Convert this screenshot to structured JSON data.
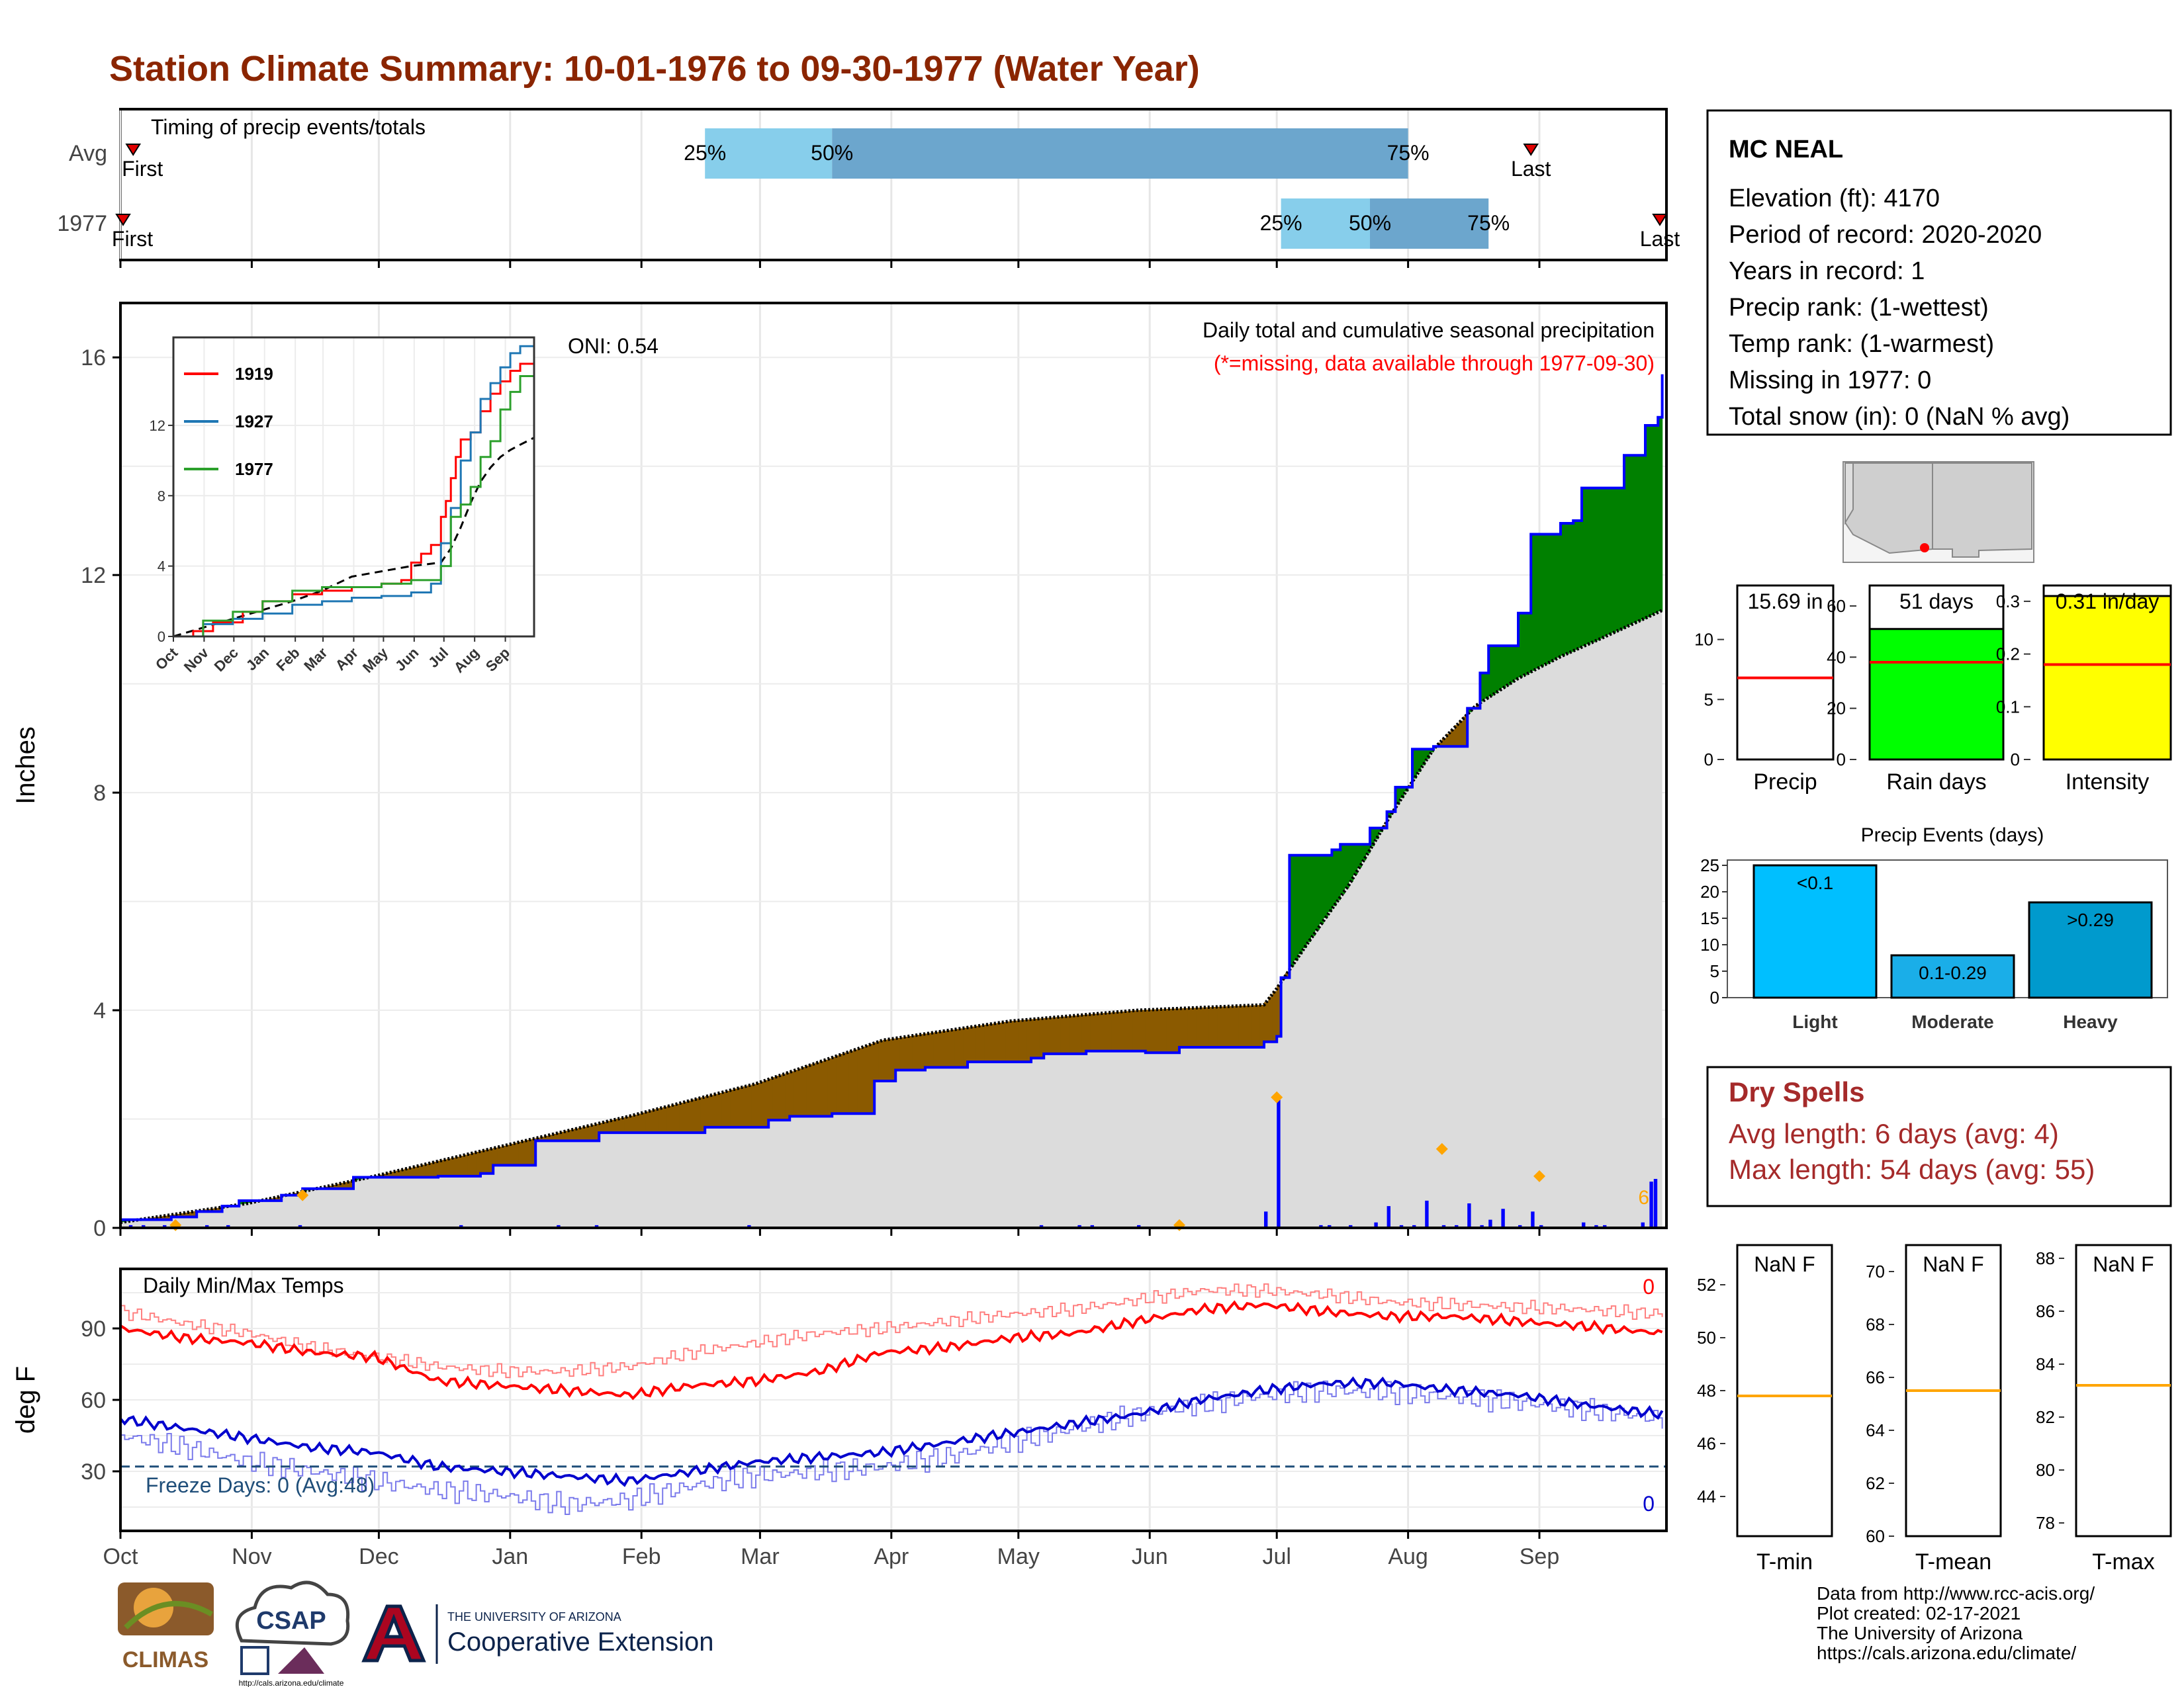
{
  "title": "Station Climate Summary: 10-01-1976 to 09-30-1977 (Water Year)",
  "colors": {
    "title": "#8B2500",
    "wet": "#008000",
    "dry": "#8B5A00",
    "avg_fill": "#DCDCDC",
    "cum_line": "#0000FF",
    "daily_bar": "#0000FF",
    "tmax": "#FF0000",
    "tmin": "#0000CD",
    "freeze": "#1F4E79",
    "timing_light": "#87CEEB",
    "timing_dark": "#6CA6CD",
    "rain_days": "#00FF00",
    "intensity": "#FFFF00",
    "events": "#00BFFF",
    "dry_spells": "#A52A2A",
    "marker": "#FFA500"
  },
  "months": [
    "Oct",
    "Nov",
    "Dec",
    "Jan",
    "Feb",
    "Mar",
    "Apr",
    "May",
    "Jun",
    "Jul",
    "Aug",
    "Sep"
  ],
  "timing": {
    "label": "Timing of precip events/totals",
    "rows": [
      {
        "name": "Avg",
        "first": "First",
        "last": "Last",
        "first_day": 3,
        "q25": 138,
        "q50": 168,
        "q75": 304,
        "last_day": 333
      },
      {
        "name": "1977",
        "first": "First",
        "last": "Last",
        "first_day": 0,
        "q25": 274,
        "q50": 295,
        "q75": 323,
        "last_day": 364
      }
    ],
    "q_labels": [
      "25%",
      "50%",
      "75%"
    ]
  },
  "precip": {
    "ylabel": "Inches",
    "ylim": [
      0,
      17
    ],
    "yticks": [
      0,
      4,
      8,
      12,
      16
    ],
    "title_text": "Daily total and cumulative seasonal precipitation",
    "missing_note": "(*=missing, data available through 1977-09-30)",
    "oni": "ONI: 0.54",
    "marker_note": "6",
    "cum_steps": [
      [
        0,
        0.15
      ],
      [
        12,
        0.2
      ],
      [
        18,
        0.3
      ],
      [
        24,
        0.4
      ],
      [
        28,
        0.5
      ],
      [
        38,
        0.6
      ],
      [
        43,
        0.72
      ],
      [
        55,
        0.93
      ],
      [
        75,
        0.95
      ],
      [
        85,
        1.0
      ],
      [
        88,
        1.15
      ],
      [
        98,
        1.6
      ],
      [
        113,
        1.75
      ],
      [
        138,
        1.85
      ],
      [
        153,
        1.98
      ],
      [
        158,
        2.05
      ],
      [
        168,
        2.1
      ],
      [
        178,
        2.7
      ],
      [
        183,
        2.9
      ],
      [
        190,
        2.95
      ],
      [
        200,
        3.05
      ],
      [
        215,
        3.12
      ],
      [
        218,
        3.2
      ],
      [
        228,
        3.25
      ],
      [
        242,
        3.22
      ],
      [
        288,
        3.32
      ],
      [
        320,
        3.32
      ],
      [
        340,
        3.52
      ],
      [
        365,
        3.6
      ],
      [
        382,
        3.65
      ],
      [
        400,
        3.7
      ],
      [
        410,
        3.75
      ],
      [
        425,
        3.78
      ],
      [
        437,
        3.78
      ],
      [
        434,
        3.84
      ],
      [
        435,
        3.84
      ],
      [
        436,
        3.84
      ]
    ],
    "cum_x": [
      0,
      12,
      18,
      24,
      28,
      38,
      43,
      55,
      75,
      85,
      88,
      98,
      113,
      138,
      153,
      158,
      168,
      178,
      183,
      190,
      200,
      215,
      218,
      228,
      242,
      250,
      270,
      273,
      274,
      276,
      280,
      286,
      288,
      295,
      299,
      301,
      305,
      310,
      312,
      318,
      321,
      323,
      330,
      333,
      340,
      343,
      345,
      355,
      360,
      363,
      364
    ],
    "cum_y": [
      0.15,
      0.2,
      0.3,
      0.4,
      0.5,
      0.6,
      0.72,
      0.93,
      0.95,
      1.0,
      1.15,
      1.6,
      1.75,
      1.85,
      1.98,
      2.05,
      2.1,
      2.7,
      2.9,
      2.95,
      3.05,
      3.12,
      3.2,
      3.25,
      3.22,
      3.32,
      3.42,
      3.52,
      4.6,
      6.85,
      6.85,
      6.95,
      7.05,
      7.35,
      7.65,
      8.1,
      8.8,
      8.85,
      8.85,
      9.55,
      10.2,
      10.7,
      11.3,
      12.75,
      12.95,
      13.0,
      13.6,
      14.2,
      14.75,
      14.9,
      15.69
    ],
    "avg_x": [
      0,
      30,
      60,
      90,
      120,
      150,
      180,
      210,
      240,
      270,
      273,
      280,
      290,
      300,
      310,
      320,
      330,
      340,
      350,
      364
    ],
    "avg_y": [
      0.1,
      0.45,
      0.95,
      1.5,
      2.05,
      2.65,
      3.45,
      3.8,
      4.0,
      4.1,
      4.4,
      5.2,
      6.3,
      7.6,
      8.8,
      9.6,
      10.1,
      10.5,
      10.85,
      11.35
    ],
    "daily_x": [
      2,
      5,
      10,
      20,
      25,
      42,
      80,
      103,
      112,
      148,
      217,
      226,
      229,
      240,
      270,
      273,
      283,
      285,
      290,
      296,
      299,
      302,
      305,
      308,
      312,
      315,
      318,
      321,
      323,
      326,
      330,
      333,
      335,
      345,
      348,
      350,
      359,
      361,
      362
    ],
    "daily_y": [
      0.05,
      0.05,
      0.05,
      0.05,
      0.05,
      0.05,
      0.05,
      0.05,
      0.05,
      0.05,
      0.05,
      0.05,
      0.05,
      0.05,
      0.3,
      2.4,
      0.05,
      0.05,
      0.05,
      0.1,
      0.4,
      0.05,
      0.05,
      0.5,
      0.05,
      0.05,
      0.45,
      0.05,
      0.15,
      0.35,
      0.05,
      0.3,
      0.05,
      0.1,
      0.05,
      0.05,
      0.1,
      0.85,
      0.9
    ],
    "marker_x": [
      13,
      43,
      250,
      273,
      312,
      335
    ],
    "marker_y": [
      0.05,
      0.6,
      0.05,
      2.4,
      1.45,
      0.95
    ]
  },
  "inset": {
    "ylim": [
      0,
      17
    ],
    "yticks": [
      0,
      4,
      8,
      12
    ],
    "series": [
      {
        "name": "1919",
        "color": "#FF0000",
        "x": [
          0,
          20,
          40,
          70,
          90,
          120,
          150,
          180,
          210,
          230,
          240,
          250,
          260,
          270,
          275,
          280,
          285,
          290,
          300,
          310,
          320,
          330,
          340,
          350,
          364
        ],
        "y": [
          0,
          0.3,
          0.8,
          1.4,
          2.0,
          2.4,
          2.6,
          2.8,
          3.0,
          3.2,
          4.2,
          4.7,
          5.2,
          6.8,
          7.7,
          9.0,
          10.2,
          11.2,
          11.6,
          12.8,
          13.8,
          14.5,
          15.1,
          15.5,
          16.3
        ]
      },
      {
        "name": "1927",
        "color": "#1F77B4",
        "x": [
          0,
          30,
          60,
          90,
          120,
          150,
          180,
          210,
          240,
          260,
          270,
          280,
          290,
          300,
          310,
          320,
          330,
          340,
          350,
          364
        ],
        "y": [
          0,
          0.7,
          1.0,
          1.3,
          1.8,
          2.0,
          2.2,
          2.3,
          2.5,
          3.0,
          5.3,
          7.3,
          10.0,
          11.6,
          13.5,
          14.4,
          15.3,
          16.1,
          16.5,
          17.0
        ]
      },
      {
        "name": "1977",
        "color": "#2CA02C",
        "x": [
          0,
          30,
          60,
          90,
          120,
          150,
          180,
          210,
          240,
          270,
          280,
          290,
          300,
          310,
          320,
          330,
          340,
          350,
          364
        ],
        "y": [
          0,
          0.9,
          1.4,
          2.0,
          2.6,
          2.8,
          2.8,
          3.0,
          3.2,
          4.0,
          6.8,
          7.5,
          8.5,
          10.2,
          11.1,
          12.9,
          13.9,
          14.8,
          15.7
        ]
      }
    ],
    "avg": {
      "x": [
        0,
        30,
        60,
        90,
        120,
        150,
        180,
        210,
        240,
        270,
        280,
        290,
        300,
        310,
        320,
        330,
        340,
        350,
        364
      ],
      "y": [
        0,
        0.5,
        1.0,
        1.5,
        2.0,
        2.6,
        3.4,
        3.7,
        4.0,
        4.2,
        5.0,
        6.2,
        7.6,
        8.8,
        9.6,
        10.2,
        10.6,
        10.9,
        11.3
      ]
    }
  },
  "temps": {
    "ylabel": "deg F",
    "label": "Daily Min/Max Temps",
    "freeze_label": "Freeze Days: 0 (Avg:48)",
    "ylim": [
      5,
      115
    ],
    "yticks": [
      30,
      60,
      90
    ],
    "freeze_line": 32,
    "count_high": "0",
    "count_low": "0",
    "tmax_x": [
      0,
      15,
      30,
      45,
      60,
      75,
      90,
      105,
      120,
      135,
      150,
      165,
      180,
      195,
      210,
      225,
      240,
      255,
      270,
      285,
      300,
      315,
      330,
      345,
      364
    ],
    "tmax_y": [
      90,
      86,
      84,
      80,
      78,
      68,
      66,
      64,
      62,
      66,
      68,
      72,
      80,
      82,
      86,
      88,
      93,
      98,
      100,
      97,
      95,
      95,
      93,
      91,
      88
    ],
    "tmax_avg_x": [
      0,
      15,
      30,
      45,
      60,
      75,
      90,
      105,
      120,
      135,
      150,
      165,
      180,
      195,
      210,
      225,
      240,
      255,
      270,
      285,
      300,
      315,
      330,
      345,
      364
    ],
    "tmax_avg_y": [
      97,
      92,
      88,
      82,
      78,
      74,
      72,
      72,
      74,
      80,
      84,
      88,
      90,
      93,
      96,
      98,
      102,
      106,
      106,
      104,
      101,
      100,
      99,
      98,
      96
    ],
    "tmin_x": [
      0,
      15,
      30,
      45,
      60,
      75,
      90,
      105,
      120,
      135,
      150,
      165,
      180,
      195,
      210,
      225,
      240,
      255,
      270,
      285,
      300,
      315,
      330,
      345,
      364
    ],
    "tmin_y": [
      52,
      48,
      44,
      40,
      38,
      32,
      30,
      28,
      26,
      30,
      34,
      36,
      38,
      42,
      46,
      50,
      54,
      60,
      64,
      67,
      67,
      64,
      62,
      58,
      54
    ],
    "tmin_avg_x": [
      0,
      15,
      30,
      45,
      60,
      75,
      90,
      105,
      120,
      135,
      150,
      165,
      180,
      195,
      210,
      225,
      240,
      255,
      270,
      285,
      300,
      315,
      330,
      345,
      364
    ],
    "tmin_avg_y": [
      45,
      40,
      34,
      30,
      26,
      22,
      20,
      16,
      18,
      24,
      28,
      30,
      32,
      36,
      42,
      48,
      54,
      58,
      62,
      64,
      63,
      61,
      59,
      56,
      52
    ]
  },
  "station": {
    "name": "MC NEAL",
    "lines": [
      "Elevation (ft): 4170",
      "Period of record: 2020-2020",
      "Years in record: 1",
      "Precip rank:  (1-wettest)",
      "Temp rank:  (1-warmest)",
      "Missing in 1977: 0",
      "Total snow (in): 0 (NaN % avg)"
    ]
  },
  "summary_bars": [
    {
      "label": "Precip",
      "value_text": "15.69 in",
      "value": 15.69,
      "avg": 6.8,
      "ylim": [
        0,
        14.5
      ],
      "yticks": [
        0,
        5,
        10
      ],
      "color": "#FFFFFF"
    },
    {
      "label": "Rain days",
      "value_text": "51 days",
      "value": 51,
      "avg": 38,
      "ylim": [
        0,
        68
      ],
      "yticks": [
        0,
        20,
        40,
        60
      ],
      "color": "#00FF00"
    },
    {
      "label": "Intensity",
      "value_text": "0.31 in/day",
      "value": 0.31,
      "avg": 0.18,
      "ylim": [
        0,
        0.33
      ],
      "yticks": [
        0.0,
        0.1,
        0.2,
        0.3
      ],
      "color": "#FFFF00"
    }
  ],
  "events": {
    "title": "Precip Events (days)",
    "ylim": [
      0,
      26
    ],
    "yticks": [
      0,
      5,
      10,
      15,
      20,
      25
    ],
    "categories": [
      "Light",
      "Moderate",
      "Heavy"
    ],
    "labels": [
      "<0.1",
      "0.1-0.29",
      ">0.29"
    ],
    "values": [
      25,
      8,
      18
    ],
    "colors": [
      "#00BFFF",
      "#1AAEE8",
      "#009ACD"
    ]
  },
  "dry_spells": {
    "title": "Dry Spells",
    "avg_line": "Avg length: 6 days (avg: 4)",
    "max_line": "Max length: 54 days (avg: 55)"
  },
  "temp_boxes": [
    {
      "label": "T-min",
      "value_text": "NaN F",
      "avg": 47.8,
      "ylim": [
        42.5,
        53.5
      ],
      "yticks": [
        44,
        46,
        48,
        50,
        52
      ]
    },
    {
      "label": "T-mean",
      "value_text": "NaN F",
      "avg": 65.5,
      "ylim": [
        60,
        71
      ],
      "yticks": [
        60,
        62,
        64,
        66,
        68,
        70
      ]
    },
    {
      "label": "T-max",
      "value_text": "NaN F",
      "avg": 83.2,
      "ylim": [
        77.5,
        88.5
      ],
      "yticks": [
        78,
        80,
        82,
        84,
        86,
        88
      ]
    }
  ],
  "footer": {
    "lines": [
      "Data from http://www.rcc-acis.org/",
      "Plot created: 02-17-2021",
      "The University of Arizona",
      "https://cals.arizona.edu/climate/"
    ]
  },
  "logos": {
    "climas": "CLIMAS",
    "csap": "CSAP",
    "csap_url": "http://cals.arizona.edu/climate",
    "ua_small": "THE UNIVERSITY OF ARIZONA",
    "ua_big": "Cooperative Extension"
  }
}
